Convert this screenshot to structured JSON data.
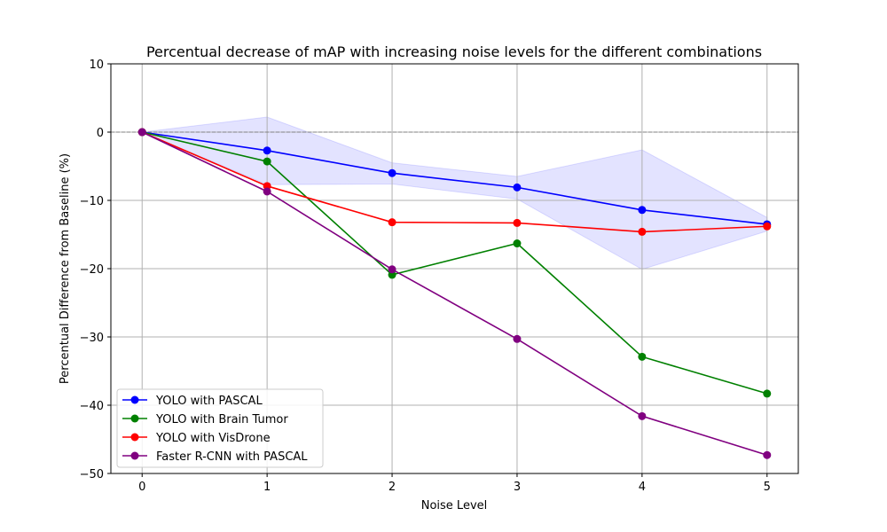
{
  "chart_data": {
    "type": "line",
    "title": "Percentual decrease of mAP with increasing noise levels for the different combinations",
    "xlabel": "Noise Level",
    "ylabel": "Percentual Difference from Baseline (%)",
    "x": [
      0,
      1,
      2,
      3,
      4,
      5
    ],
    "xlim": [
      -0.25,
      5.25
    ],
    "ylim": [
      -50,
      10
    ],
    "xticks": [
      "0",
      "1",
      "2",
      "3",
      "4",
      "5"
    ],
    "yticks": [
      "10",
      "0",
      "−10",
      "−20",
      "−30",
      "−40",
      "−50"
    ],
    "ytick_values": [
      10,
      0,
      -10,
      -20,
      -30,
      -40,
      -50
    ],
    "grid": true,
    "baseline_line": 0,
    "legend_position": "lower-left",
    "band": {
      "series": "YOLO with PASCAL",
      "color": "#0000ff",
      "upper": [
        0,
        2.2,
        -4.5,
        -6.5,
        -2.6,
        -12.5
      ],
      "lower": [
        0,
        -7.7,
        -7.6,
        -9.8,
        -20.1,
        -14.5
      ]
    },
    "series": [
      {
        "name": "YOLO with PASCAL",
        "color": "#0000ff",
        "values": [
          0,
          -2.7,
          -6.0,
          -8.1,
          -11.4,
          -13.5
        ]
      },
      {
        "name": "YOLO with Brain Tumor",
        "color": "#008000",
        "values": [
          0,
          -4.3,
          -20.9,
          -16.3,
          -32.9,
          -38.3
        ]
      },
      {
        "name": "YOLO with VisDrone",
        "color": "#ff0000",
        "values": [
          0,
          -7.9,
          -13.2,
          -13.3,
          -14.6,
          -13.8
        ]
      },
      {
        "name": "Faster R-CNN with PASCAL",
        "color": "#800080",
        "values": [
          0,
          -8.7,
          -20.1,
          -30.3,
          -41.6,
          -47.3
        ]
      }
    ]
  }
}
